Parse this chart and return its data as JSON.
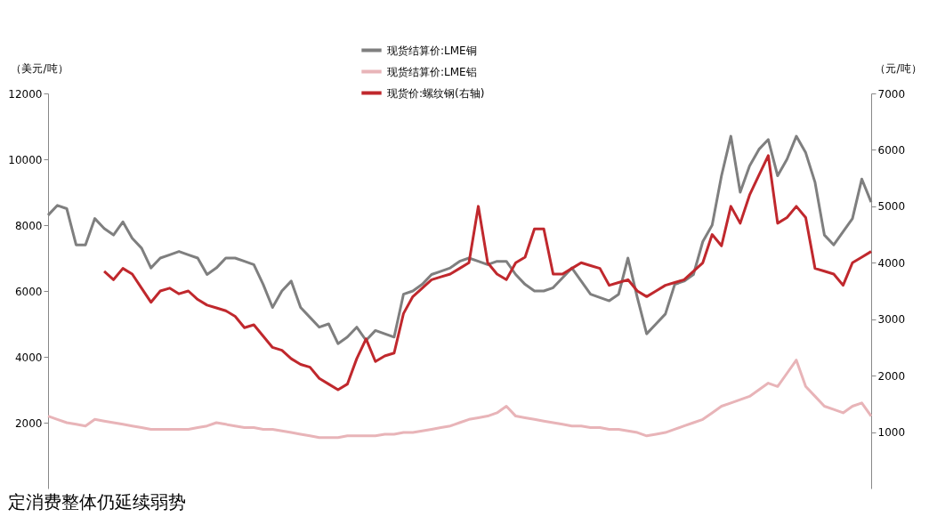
{
  "chart_data": {
    "type": "line",
    "ylabel": "（美元/吨）",
    "y2label": "（元/吨）",
    "categories": [
      null,
      null,
      null,
      null,
      null,
      null,
      null,
      null,
      null,
      null,
      null,
      null,
      null,
      null,
      null,
      null,
      null,
      null,
      null,
      null,
      null,
      null,
      null,
      null,
      null,
      null,
      null,
      null,
      null,
      null,
      null,
      null,
      null,
      null,
      null,
      null,
      null,
      null,
      null,
      null,
      null,
      null,
      null,
      null,
      null,
      null,
      null,
      null,
      null,
      null,
      null,
      null,
      null,
      null,
      null,
      null,
      null,
      null,
      null,
      null,
      null,
      null,
      null,
      null,
      null,
      null,
      null,
      null,
      null,
      null,
      null,
      null,
      null,
      null,
      null,
      null,
      null,
      null,
      null,
      null,
      null,
      null,
      null,
      null,
      null,
      null,
      null,
      null,
      null
    ],
    "ylim": [
      0,
      12000
    ],
    "yticks": [
      2000,
      4000,
      6000,
      8000,
      10000,
      12000
    ],
    "y2lim": [
      0,
      7000
    ],
    "y2ticks": [
      1000,
      2000,
      3000,
      4000,
      5000,
      6000,
      7000
    ],
    "grid": false,
    "legend": "top",
    "marker": "none",
    "line_style": "solid",
    "annotations": [
      "定消费整体仍延续弱势"
    ],
    "series": [
      {
        "name": "现货结算价:LME铜",
        "color": "#7f7f7f",
        "values": [
          8300,
          8600,
          8500,
          7400,
          7400,
          8200,
          7900,
          7700,
          8100,
          7600,
          7300,
          6700,
          7000,
          7100,
          7200,
          7100,
          7000,
          6500,
          6700,
          7000,
          7000,
          6900,
          6800,
          6200,
          5500,
          6000,
          6300,
          5500,
          5200,
          4900,
          5000,
          4400,
          4600,
          4900,
          4500,
          4800,
          4700,
          4600,
          5900,
          6000,
          6200,
          6500,
          6600,
          6700,
          6900,
          7000,
          6900,
          6800,
          6900,
          6900,
          6500,
          6200,
          6000,
          6000,
          6100,
          6400,
          6700,
          6300,
          5900,
          5800,
          5700,
          5900,
          7000,
          5800,
          4700,
          5000,
          5300,
          6200,
          6300,
          6500,
          7500,
          8000,
          9500,
          10700,
          9000,
          9800,
          10300,
          10600,
          9500,
          10000,
          10700,
          10200,
          9300,
          7700,
          7400,
          7800,
          8200,
          9400,
          8700
        ]
      },
      {
        "name": "现货结算价:LME铝",
        "color": "#e8b4b8",
        "values": [
          2200,
          2100,
          2000,
          1950,
          1900,
          2100,
          2050,
          2000,
          1950,
          1900,
          1850,
          1800,
          1800,
          1800,
          1800,
          1800,
          1850,
          1900,
          2000,
          1950,
          1900,
          1850,
          1850,
          1800,
          1800,
          1750,
          1700,
          1650,
          1600,
          1550,
          1550,
          1550,
          1600,
          1600,
          1600,
          1600,
          1650,
          1650,
          1700,
          1700,
          1750,
          1800,
          1850,
          1900,
          2000,
          2100,
          2150,
          2200,
          2300,
          2500,
          2200,
          2150,
          2100,
          2050,
          2000,
          1950,
          1900,
          1900,
          1850,
          1850,
          1800,
          1800,
          1750,
          1700,
          1600,
          1650,
          1700,
          1800,
          1900,
          2000,
          2100,
          2300,
          2500,
          2600,
          2700,
          2800,
          3000,
          3200,
          3100,
          3500,
          3900,
          3100,
          2800,
          2500,
          2400,
          2300,
          2500,
          2600,
          2200
        ]
      },
      {
        "name": "现货价:螺纹钢(右轴)",
        "color": "#c0282d",
        "axis": "y2",
        "values": [
          null,
          null,
          null,
          null,
          null,
          null,
          3850,
          3700,
          3900,
          3800,
          3550,
          3300,
          3500,
          3550,
          3450,
          3500,
          3350,
          3250,
          3200,
          3150,
          3050,
          2850,
          2900,
          2700,
          2500,
          2450,
          2300,
          2200,
          2150,
          1950,
          1850,
          1750,
          1850,
          2300,
          2650,
          2250,
          2350,
          2400,
          3100,
          3400,
          3550,
          3700,
          3750,
          3800,
          3900,
          4000,
          5000,
          4000,
          3800,
          3700,
          4000,
          4100,
          4600,
          4600,
          3800,
          3800,
          3900,
          4000,
          3950,
          3900,
          3600,
          3650,
          3700,
          3500,
          3400,
          3500,
          3600,
          3650,
          3700,
          3850,
          4000,
          4500,
          4300,
          5000,
          4700,
          5200,
          5550,
          5900,
          4700,
          4800,
          5000,
          4800,
          3900,
          3850,
          3800,
          3600,
          4000,
          4100,
          4200
        ]
      }
    ]
  }
}
